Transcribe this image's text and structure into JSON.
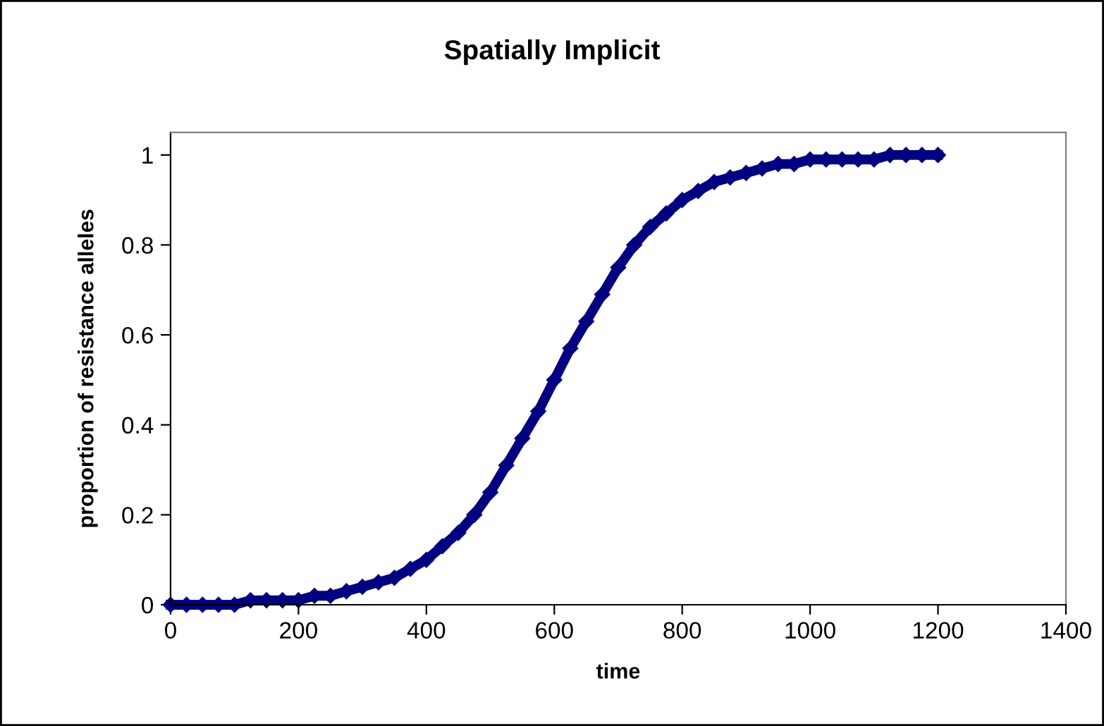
{
  "chart_data": {
    "type": "line",
    "title": "Spatially Implicit",
    "xlabel": "time",
    "ylabel": "proportion of resistance alleles",
    "x": [
      0,
      25,
      50,
      75,
      100,
      125,
      150,
      175,
      200,
      225,
      250,
      275,
      300,
      325,
      350,
      375,
      400,
      425,
      450,
      475,
      500,
      525,
      550,
      575,
      600,
      625,
      650,
      675,
      700,
      725,
      750,
      775,
      800,
      825,
      850,
      875,
      900,
      925,
      950,
      975,
      1000,
      1025,
      1050,
      1075,
      1100,
      1125,
      1150,
      1175,
      1200
    ],
    "series": [
      {
        "color": "#000080",
        "values": [
          0,
          0,
          0,
          0,
          0,
          0.01,
          0.01,
          0.01,
          0.01,
          0.02,
          0.02,
          0.03,
          0.04,
          0.05,
          0.06,
          0.08,
          0.1,
          0.13,
          0.16,
          0.2,
          0.25,
          0.31,
          0.37,
          0.43,
          0.5,
          0.57,
          0.63,
          0.69,
          0.75,
          0.8,
          0.84,
          0.87,
          0.9,
          0.92,
          0.94,
          0.95,
          0.96,
          0.97,
          0.98,
          0.98,
          0.99,
          0.99,
          0.99,
          0.99,
          0.99,
          1,
          1,
          1,
          1
        ]
      }
    ],
    "xlim": [
      0,
      1400
    ],
    "xticks": [
      0,
      200,
      400,
      600,
      800,
      1000,
      1200,
      1400
    ],
    "ylim": [
      0,
      1.05
    ],
    "yticks": [
      0,
      0.2,
      0.4,
      0.6,
      0.8,
      1
    ],
    "marker": "diamond",
    "line_style": "solid",
    "grid": false,
    "legend": false
  }
}
